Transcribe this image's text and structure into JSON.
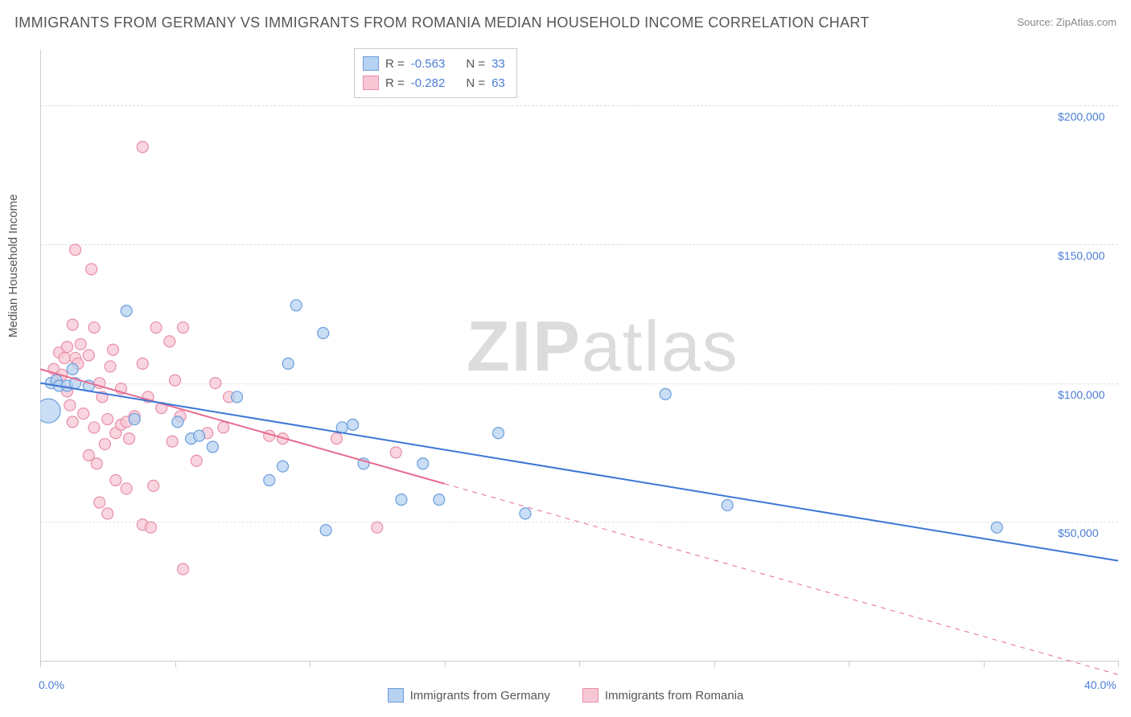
{
  "title": "IMMIGRANTS FROM GERMANY VS IMMIGRANTS FROM ROMANIA MEDIAN HOUSEHOLD INCOME CORRELATION CHART",
  "source": "Source: ZipAtlas.com",
  "watermark": {
    "zip": "ZIP",
    "atlas": "atlas"
  },
  "ylabel": "Median Household Income",
  "chart": {
    "type": "scatter",
    "xlim": [
      0,
      40
    ],
    "ylim": [
      0,
      220000
    ],
    "x_ticks": [
      0,
      5,
      10,
      15,
      20,
      25,
      30,
      35,
      40
    ],
    "x_tick_labels_shown": {
      "0": "0.0%",
      "40": "40.0%"
    },
    "y_ticks": [
      50000,
      100000,
      150000,
      200000
    ],
    "y_tick_labels": [
      "$50,000",
      "$100,000",
      "$150,000",
      "$200,000"
    ],
    "grid_color": "#dddddd",
    "axis_color": "#cccccc",
    "background_color": "#ffffff",
    "tick_label_color": "#4a7dd6",
    "series": {
      "germany": {
        "label": "Immigrants from Germany",
        "fill": "#b7d1f0",
        "stroke": "#6a9edc",
        "reg_line_color": "#3b76d6",
        "reg_line_width": 2,
        "reg_start": {
          "x": 0,
          "y": 100000
        },
        "reg_end": {
          "x": 40,
          "y": 36000
        },
        "r_value": "-0.563",
        "n_value": "33",
        "marker_r": 7,
        "points": [
          {
            "x": 0.3,
            "y": 90000,
            "r": 15
          },
          {
            "x": 0.4,
            "y": 100000
          },
          {
            "x": 0.6,
            "y": 101000
          },
          {
            "x": 0.7,
            "y": 99000
          },
          {
            "x": 1.0,
            "y": 99000
          },
          {
            "x": 1.2,
            "y": 105000
          },
          {
            "x": 1.3,
            "y": 100000
          },
          {
            "x": 1.8,
            "y": 99000
          },
          {
            "x": 3.2,
            "y": 126000
          },
          {
            "x": 3.5,
            "y": 87000
          },
          {
            "x": 5.1,
            "y": 86000
          },
          {
            "x": 5.6,
            "y": 80000
          },
          {
            "x": 5.9,
            "y": 81000
          },
          {
            "x": 6.4,
            "y": 77000
          },
          {
            "x": 7.3,
            "y": 95000
          },
          {
            "x": 8.5,
            "y": 65000
          },
          {
            "x": 9.0,
            "y": 70000
          },
          {
            "x": 9.2,
            "y": 107000
          },
          {
            "x": 9.5,
            "y": 128000
          },
          {
            "x": 10.5,
            "y": 118000
          },
          {
            "x": 10.6,
            "y": 47000
          },
          {
            "x": 11.2,
            "y": 84000
          },
          {
            "x": 11.6,
            "y": 85000
          },
          {
            "x": 12.0,
            "y": 71000
          },
          {
            "x": 13.4,
            "y": 58000
          },
          {
            "x": 14.2,
            "y": 71000
          },
          {
            "x": 14.8,
            "y": 58000
          },
          {
            "x": 17.0,
            "y": 82000
          },
          {
            "x": 18.0,
            "y": 53000
          },
          {
            "x": 23.2,
            "y": 96000
          },
          {
            "x": 25.5,
            "y": 56000
          },
          {
            "x": 35.5,
            "y": 48000
          }
        ]
      },
      "romania": {
        "label": "Immigrants from Romania",
        "fill": "#f7c7d5",
        "stroke": "#e88fa8",
        "reg_line_color": "#e76b8f",
        "reg_line_width": 2,
        "reg_solid_end_x": 15,
        "reg_start": {
          "x": 0,
          "y": 105000
        },
        "reg_end": {
          "x": 40,
          "y": -5000
        },
        "r_value": "-0.282",
        "n_value": "63",
        "marker_r": 7,
        "points": [
          {
            "x": 0.5,
            "y": 105000
          },
          {
            "x": 0.6,
            "y": 101000
          },
          {
            "x": 0.7,
            "y": 111000
          },
          {
            "x": 0.8,
            "y": 103000
          },
          {
            "x": 0.9,
            "y": 109000
          },
          {
            "x": 1.0,
            "y": 113000
          },
          {
            "x": 1.0,
            "y": 97000
          },
          {
            "x": 1.1,
            "y": 92000
          },
          {
            "x": 1.2,
            "y": 121000
          },
          {
            "x": 1.2,
            "y": 86000
          },
          {
            "x": 1.3,
            "y": 109000
          },
          {
            "x": 1.3,
            "y": 148000
          },
          {
            "x": 1.4,
            "y": 107000
          },
          {
            "x": 1.5,
            "y": 114000
          },
          {
            "x": 1.6,
            "y": 89000
          },
          {
            "x": 1.8,
            "y": 74000
          },
          {
            "x": 1.8,
            "y": 110000
          },
          {
            "x": 1.9,
            "y": 141000
          },
          {
            "x": 2.0,
            "y": 120000
          },
          {
            "x": 2.0,
            "y": 84000
          },
          {
            "x": 2.1,
            "y": 71000
          },
          {
            "x": 2.2,
            "y": 100000
          },
          {
            "x": 2.2,
            "y": 57000
          },
          {
            "x": 2.3,
            "y": 95000
          },
          {
            "x": 2.4,
            "y": 78000
          },
          {
            "x": 2.5,
            "y": 53000
          },
          {
            "x": 2.5,
            "y": 87000
          },
          {
            "x": 2.6,
            "y": 106000
          },
          {
            "x": 2.7,
            "y": 112000
          },
          {
            "x": 2.8,
            "y": 65000
          },
          {
            "x": 2.8,
            "y": 82000
          },
          {
            "x": 3.0,
            "y": 98000
          },
          {
            "x": 3.0,
            "y": 85000
          },
          {
            "x": 3.2,
            "y": 86000
          },
          {
            "x": 3.2,
            "y": 62000
          },
          {
            "x": 3.3,
            "y": 80000
          },
          {
            "x": 3.5,
            "y": 88000
          },
          {
            "x": 3.8,
            "y": 107000
          },
          {
            "x": 3.8,
            "y": 49000
          },
          {
            "x": 3.8,
            "y": 185000
          },
          {
            "x": 4.0,
            "y": 95000
          },
          {
            "x": 4.1,
            "y": 48000
          },
          {
            "x": 4.2,
            "y": 63000
          },
          {
            "x": 4.3,
            "y": 120000
          },
          {
            "x": 4.5,
            "y": 91000
          },
          {
            "x": 4.8,
            "y": 115000
          },
          {
            "x": 4.9,
            "y": 79000
          },
          {
            "x": 5.0,
            "y": 101000
          },
          {
            "x": 5.2,
            "y": 88000
          },
          {
            "x": 5.3,
            "y": 120000
          },
          {
            "x": 5.3,
            "y": 33000
          },
          {
            "x": 5.8,
            "y": 72000
          },
          {
            "x": 6.2,
            "y": 82000
          },
          {
            "x": 6.5,
            "y": 100000
          },
          {
            "x": 6.8,
            "y": 84000
          },
          {
            "x": 7.0,
            "y": 95000
          },
          {
            "x": 8.5,
            "y": 81000
          },
          {
            "x": 9.0,
            "y": 80000
          },
          {
            "x": 11.0,
            "y": 80000
          },
          {
            "x": 12.5,
            "y": 48000
          },
          {
            "x": 13.2,
            "y": 75000
          }
        ]
      }
    }
  },
  "legend_labels": {
    "r": "R =",
    "n": "N ="
  }
}
